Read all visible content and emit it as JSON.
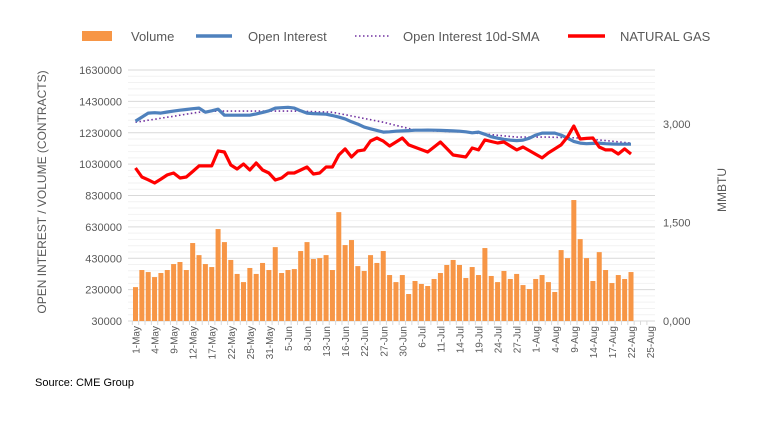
{
  "chart_data": {
    "type": "bar+line",
    "title": "",
    "legend": {
      "placement": "top",
      "entries": [
        {
          "name": "Volume",
          "kind": "bar",
          "color": "#F79646"
        },
        {
          "name": "Open Interest",
          "kind": "line",
          "color": "#4F81BD"
        },
        {
          "name": "Open Interest 10d-SMA",
          "kind": "dotted-line",
          "color": "#7030A0"
        },
        {
          "name": "NATURAL GAS",
          "kind": "line",
          "color": "#FF0000"
        }
      ]
    },
    "ylabel": "OPEN INTEREST / VOLUME (CONTRACTS)",
    "y2label": "MMBTU",
    "ylim": [
      30000,
      1630000
    ],
    "yticks": [
      "30000",
      "230000",
      "430000",
      "630000",
      "830000",
      "1030000",
      "1230000",
      "1430000",
      "1630000"
    ],
    "y2lim": [
      0,
      3822
    ],
    "y2ticks": [
      {
        "value": 0,
        "label": "0,000"
      },
      {
        "value": 1500,
        "label": "1,500"
      },
      {
        "value": 3000,
        "label": "3,000"
      }
    ],
    "xtick_labels": [
      "1-May",
      "4-May",
      "9-May",
      "12-May",
      "17-May",
      "22-May",
      "25-May",
      "31-May",
      "5-Jun",
      "8-Jun",
      "13-Jun",
      "16-Jun",
      "22-Jun",
      "27-Jun",
      "30-Jun",
      "6-Jul",
      "11-Jul",
      "14-Jul",
      "19-Jul",
      "24-Jul",
      "27-Jul",
      "1-Aug",
      "4-Aug",
      "9-Aug",
      "14-Aug",
      "17-Aug",
      "22-Aug",
      "25-Aug"
    ],
    "grid": true,
    "series": [
      {
        "name": "Volume",
        "axis": "left",
        "values": [
          246000,
          355000,
          342000,
          310000,
          336000,
          355000,
          393000,
          406000,
          355000,
          527000,
          450000,
          393000,
          374000,
          616000,
          533000,
          419000,
          330000,
          278000,
          368000,
          330000,
          400000,
          355000,
          501000,
          336000,
          355000,
          361000,
          476000,
          533000,
          425000,
          431000,
          450000,
          355000,
          724000,
          514000,
          546000,
          380000,
          349000,
          450000,
          400000,
          476000,
          323000,
          278000,
          323000,
          202000,
          285000,
          266000,
          253000,
          298000,
          336000,
          387000,
          419000,
          387000,
          304000,
          374000,
          323000,
          495000,
          317000,
          278000,
          349000,
          298000,
          330000,
          259000,
          234000,
          298000,
          323000,
          278000,
          215000,
          482000,
          431000,
          801000,
          552000,
          431000,
          285000,
          469000,
          355000,
          272000,
          323000,
          298000,
          342000
        ]
      },
      {
        "name": "Open Interest",
        "axis": "left",
        "values": [
          1304000,
          1330000,
          1355000,
          1358000,
          1355000,
          1362000,
          1368000,
          1374000,
          1378000,
          1383000,
          1387000,
          1361000,
          1370000,
          1380000,
          1342000,
          1342000,
          1342000,
          1342000,
          1342000,
          1350000,
          1360000,
          1370000,
          1387000,
          1390000,
          1392000,
          1387000,
          1370000,
          1355000,
          1352000,
          1350000,
          1348000,
          1340000,
          1330000,
          1318000,
          1300000,
          1285000,
          1266000,
          1255000,
          1245000,
          1234000,
          1236000,
          1240000,
          1242000,
          1244000,
          1246000,
          1246000,
          1247000,
          1246000,
          1245000,
          1244000,
          1242000,
          1240000,
          1236000,
          1230000,
          1234000,
          1220000,
          1205000,
          1195000,
          1188000,
          1183000,
          1180000,
          1183000,
          1195000,
          1215000,
          1228000,
          1228000,
          1228000,
          1215000,
          1195000,
          1175000,
          1164000,
          1160000,
          1162000,
          1164000,
          1160000,
          1158000,
          1157000,
          1157000,
          1157000
        ]
      },
      {
        "name": "Open Interest 10d-SMA",
        "axis": "left",
        "values": [
          1297000,
          1303000,
          1310000,
          1316000,
          1323000,
          1329000,
          1335000,
          1342000,
          1348000,
          1355000,
          1361000,
          1363000,
          1366000,
          1368000,
          1368000,
          1368000,
          1368000,
          1368000,
          1368000,
          1368000,
          1368000,
          1368000,
          1368000,
          1368000,
          1368000,
          1368000,
          1367000,
          1366000,
          1365000,
          1363000,
          1362000,
          1361000,
          1353000,
          1345000,
          1337000,
          1329000,
          1321000,
          1313000,
          1305000,
          1297000,
          1287000,
          1277000,
          1267000,
          1257000,
          1247000,
          1245000,
          1244000,
          1242000,
          1240000,
          1239000,
          1237000,
          1236000,
          1234000,
          1230000,
          1226000,
          1222000,
          1218000,
          1214000,
          1210000,
          1206000,
          1202000,
          1202000,
          1202000,
          1202000,
          1202000,
          1202000,
          1201000,
          1200000,
          1199000,
          1198000,
          1196000,
          1192000,
          1188000,
          1184000,
          1180000,
          1176000,
          1172000,
          1168000,
          1164000
        ]
      },
      {
        "name": "NATURAL GAS",
        "axis": "right",
        "values": [
          2330,
          2193,
          2150,
          2102,
          2160,
          2224,
          2254,
          2178,
          2193,
          2277,
          2361,
          2361,
          2361,
          2590,
          2574,
          2376,
          2315,
          2391,
          2300,
          2406,
          2300,
          2254,
          2147,
          2178,
          2254,
          2254,
          2300,
          2345,
          2239,
          2254,
          2345,
          2345,
          2528,
          2620,
          2498,
          2590,
          2605,
          2741,
          2787,
          2740,
          2665,
          2726,
          2787,
          2681,
          2645,
          2610,
          2574,
          2650,
          2726,
          2627,
          2528,
          2513,
          2498,
          2635,
          2605,
          2757,
          2734,
          2711,
          2726,
          2665,
          2605,
          2650,
          2594,
          2539,
          2483,
          2559,
          2620,
          2681,
          2803,
          2970,
          2772,
          2780,
          2787,
          2650,
          2605,
          2605,
          2543,
          2620,
          2543
        ]
      }
    ]
  },
  "source": "Source: CME Group"
}
